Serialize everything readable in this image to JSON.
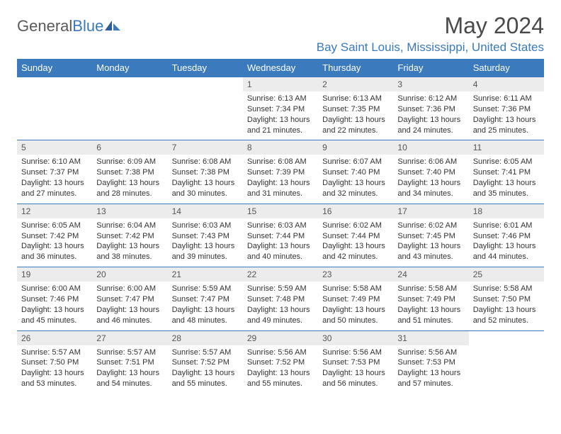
{
  "logo": {
    "text1": "General",
    "text2": "Blue"
  },
  "title": "May 2024",
  "location": "Bay Saint Louis, Mississippi, United States",
  "colors": {
    "header_bg": "#3a7abd",
    "header_text": "#ffffff",
    "daynum_bg": "#ececec",
    "border": "#3a7abd",
    "title_color": "#4a4a4a",
    "location_color": "#3a7abd",
    "body_text": "#333333"
  },
  "typography": {
    "title_fontsize": 32,
    "location_fontsize": 17,
    "header_fontsize": 13,
    "daynum_fontsize": 12,
    "cell_fontsize": 11
  },
  "dayHeaders": [
    "Sunday",
    "Monday",
    "Tuesday",
    "Wednesday",
    "Thursday",
    "Friday",
    "Saturday"
  ],
  "weeks": [
    [
      null,
      null,
      null,
      {
        "d": "1",
        "sr": "6:13 AM",
        "ss": "7:34 PM",
        "dl": "13 hours and 21 minutes."
      },
      {
        "d": "2",
        "sr": "6:13 AM",
        "ss": "7:35 PM",
        "dl": "13 hours and 22 minutes."
      },
      {
        "d": "3",
        "sr": "6:12 AM",
        "ss": "7:36 PM",
        "dl": "13 hours and 24 minutes."
      },
      {
        "d": "4",
        "sr": "6:11 AM",
        "ss": "7:36 PM",
        "dl": "13 hours and 25 minutes."
      }
    ],
    [
      {
        "d": "5",
        "sr": "6:10 AM",
        "ss": "7:37 PM",
        "dl": "13 hours and 27 minutes."
      },
      {
        "d": "6",
        "sr": "6:09 AM",
        "ss": "7:38 PM",
        "dl": "13 hours and 28 minutes."
      },
      {
        "d": "7",
        "sr": "6:08 AM",
        "ss": "7:38 PM",
        "dl": "13 hours and 30 minutes."
      },
      {
        "d": "8",
        "sr": "6:08 AM",
        "ss": "7:39 PM",
        "dl": "13 hours and 31 minutes."
      },
      {
        "d": "9",
        "sr": "6:07 AM",
        "ss": "7:40 PM",
        "dl": "13 hours and 32 minutes."
      },
      {
        "d": "10",
        "sr": "6:06 AM",
        "ss": "7:40 PM",
        "dl": "13 hours and 34 minutes."
      },
      {
        "d": "11",
        "sr": "6:05 AM",
        "ss": "7:41 PM",
        "dl": "13 hours and 35 minutes."
      }
    ],
    [
      {
        "d": "12",
        "sr": "6:05 AM",
        "ss": "7:42 PM",
        "dl": "13 hours and 36 minutes."
      },
      {
        "d": "13",
        "sr": "6:04 AM",
        "ss": "7:42 PM",
        "dl": "13 hours and 38 minutes."
      },
      {
        "d": "14",
        "sr": "6:03 AM",
        "ss": "7:43 PM",
        "dl": "13 hours and 39 minutes."
      },
      {
        "d": "15",
        "sr": "6:03 AM",
        "ss": "7:44 PM",
        "dl": "13 hours and 40 minutes."
      },
      {
        "d": "16",
        "sr": "6:02 AM",
        "ss": "7:44 PM",
        "dl": "13 hours and 42 minutes."
      },
      {
        "d": "17",
        "sr": "6:02 AM",
        "ss": "7:45 PM",
        "dl": "13 hours and 43 minutes."
      },
      {
        "d": "18",
        "sr": "6:01 AM",
        "ss": "7:46 PM",
        "dl": "13 hours and 44 minutes."
      }
    ],
    [
      {
        "d": "19",
        "sr": "6:00 AM",
        "ss": "7:46 PM",
        "dl": "13 hours and 45 minutes."
      },
      {
        "d": "20",
        "sr": "6:00 AM",
        "ss": "7:47 PM",
        "dl": "13 hours and 46 minutes."
      },
      {
        "d": "21",
        "sr": "5:59 AM",
        "ss": "7:47 PM",
        "dl": "13 hours and 48 minutes."
      },
      {
        "d": "22",
        "sr": "5:59 AM",
        "ss": "7:48 PM",
        "dl": "13 hours and 49 minutes."
      },
      {
        "d": "23",
        "sr": "5:58 AM",
        "ss": "7:49 PM",
        "dl": "13 hours and 50 minutes."
      },
      {
        "d": "24",
        "sr": "5:58 AM",
        "ss": "7:49 PM",
        "dl": "13 hours and 51 minutes."
      },
      {
        "d": "25",
        "sr": "5:58 AM",
        "ss": "7:50 PM",
        "dl": "13 hours and 52 minutes."
      }
    ],
    [
      {
        "d": "26",
        "sr": "5:57 AM",
        "ss": "7:50 PM",
        "dl": "13 hours and 53 minutes."
      },
      {
        "d": "27",
        "sr": "5:57 AM",
        "ss": "7:51 PM",
        "dl": "13 hours and 54 minutes."
      },
      {
        "d": "28",
        "sr": "5:57 AM",
        "ss": "7:52 PM",
        "dl": "13 hours and 55 minutes."
      },
      {
        "d": "29",
        "sr": "5:56 AM",
        "ss": "7:52 PM",
        "dl": "13 hours and 55 minutes."
      },
      {
        "d": "30",
        "sr": "5:56 AM",
        "ss": "7:53 PM",
        "dl": "13 hours and 56 minutes."
      },
      {
        "d": "31",
        "sr": "5:56 AM",
        "ss": "7:53 PM",
        "dl": "13 hours and 57 minutes."
      },
      null
    ]
  ],
  "labels": {
    "sunrise": "Sunrise:",
    "sunset": "Sunset:",
    "daylight": "Daylight:"
  }
}
